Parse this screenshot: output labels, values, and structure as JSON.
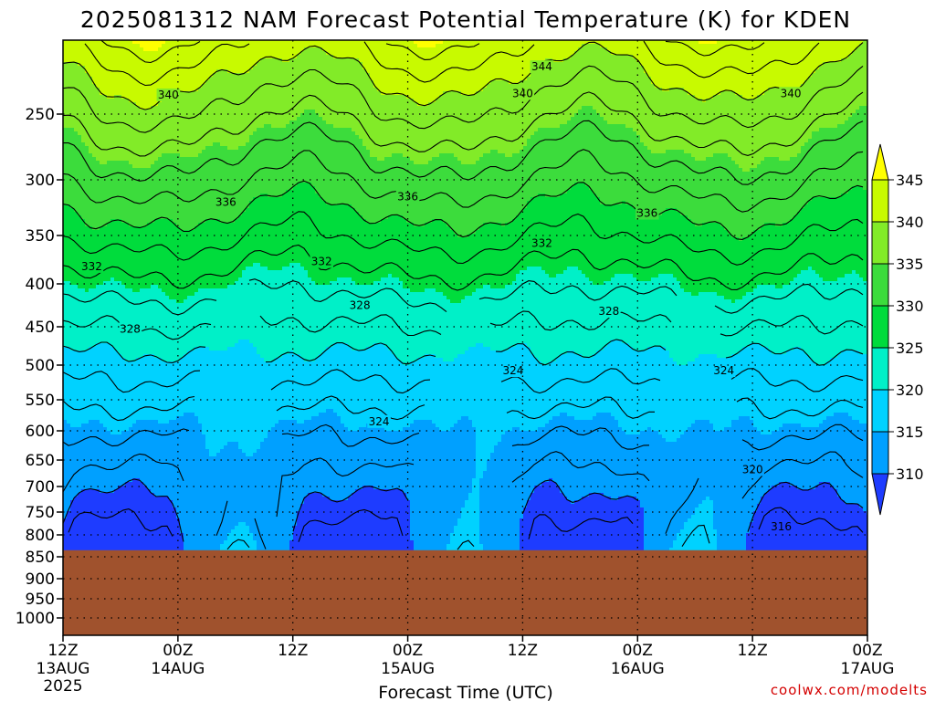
{
  "title": "2025081312 NAM Forecast Potential Temperature (K) for KDEN",
  "credit": "coolwx.com/modelts",
  "chart_data": {
    "type": "heatmap",
    "title": "2025081312 NAM Forecast Potential Temperature (K) for KDEN",
    "xlabel": "Forecast Time (UTC)",
    "ylabel": "",
    "x_axis": {
      "range_hours": [
        0,
        84
      ],
      "ticks": [
        {
          "hour": 0,
          "label": "12Z",
          "date": "13AUG",
          "year": "2025"
        },
        {
          "hour": 12,
          "label": "00Z",
          "date": "14AUG",
          "year": ""
        },
        {
          "hour": 24,
          "label": "12Z",
          "date": "",
          "year": ""
        },
        {
          "hour": 36,
          "label": "00Z",
          "date": "15AUG",
          "year": ""
        },
        {
          "hour": 48,
          "label": "12Z",
          "date": "",
          "year": ""
        },
        {
          "hour": 60,
          "label": "00Z",
          "date": "16AUG",
          "year": ""
        },
        {
          "hour": 72,
          "label": "12Z",
          "date": "",
          "year": ""
        },
        {
          "hour": 84,
          "label": "00Z",
          "date": "17AUG",
          "year": ""
        }
      ]
    },
    "y_axis": {
      "unit": "hPa",
      "range": [
        1050,
        200
      ],
      "ticks": [
        250,
        300,
        350,
        400,
        450,
        500,
        550,
        600,
        650,
        700,
        750,
        800,
        850,
        900,
        950,
        1000
      ]
    },
    "grid": true,
    "surface_pressure_hpa": 835,
    "colorbar": {
      "levels": [
        310,
        315,
        320,
        325,
        330,
        335,
        340,
        345
      ],
      "colors": [
        "#1e3cff",
        "#00a0ff",
        "#00d2ff",
        "#00f0c8",
        "#00dc3c",
        "#3cdc3c",
        "#82eb28",
        "#c8fa00",
        "#ffff00"
      ],
      "tick_labels": [
        "310",
        "315",
        "320",
        "325",
        "330",
        "335",
        "340",
        "345"
      ]
    },
    "contour_levels_labeled": [
      316,
      320,
      324,
      328,
      332,
      336,
      340,
      344
    ],
    "contour_labels": [
      {
        "value": 344,
        "hour": 50,
        "p": 218
      },
      {
        "value": 340,
        "hour": 11,
        "p": 237
      },
      {
        "value": 340,
        "hour": 48,
        "p": 236
      },
      {
        "value": 340,
        "hour": 76,
        "p": 236
      },
      {
        "value": 336,
        "hour": 17,
        "p": 320
      },
      {
        "value": 336,
        "hour": 36,
        "p": 315
      },
      {
        "value": 336,
        "hour": 61,
        "p": 330
      },
      {
        "value": 332,
        "hour": 3,
        "p": 382
      },
      {
        "value": 332,
        "hour": 27,
        "p": 377
      },
      {
        "value": 332,
        "hour": 50,
        "p": 358
      },
      {
        "value": 328,
        "hour": 7,
        "p": 453
      },
      {
        "value": 328,
        "hour": 31,
        "p": 425
      },
      {
        "value": 328,
        "hour": 57,
        "p": 432
      },
      {
        "value": 324,
        "hour": 47,
        "p": 508
      },
      {
        "value": 324,
        "hour": 69,
        "p": 508
      },
      {
        "value": 324,
        "hour": 33,
        "p": 585
      },
      {
        "value": 320,
        "hour": 72,
        "p": 668
      },
      {
        "value": 316,
        "hour": 75,
        "p": 782
      }
    ]
  }
}
